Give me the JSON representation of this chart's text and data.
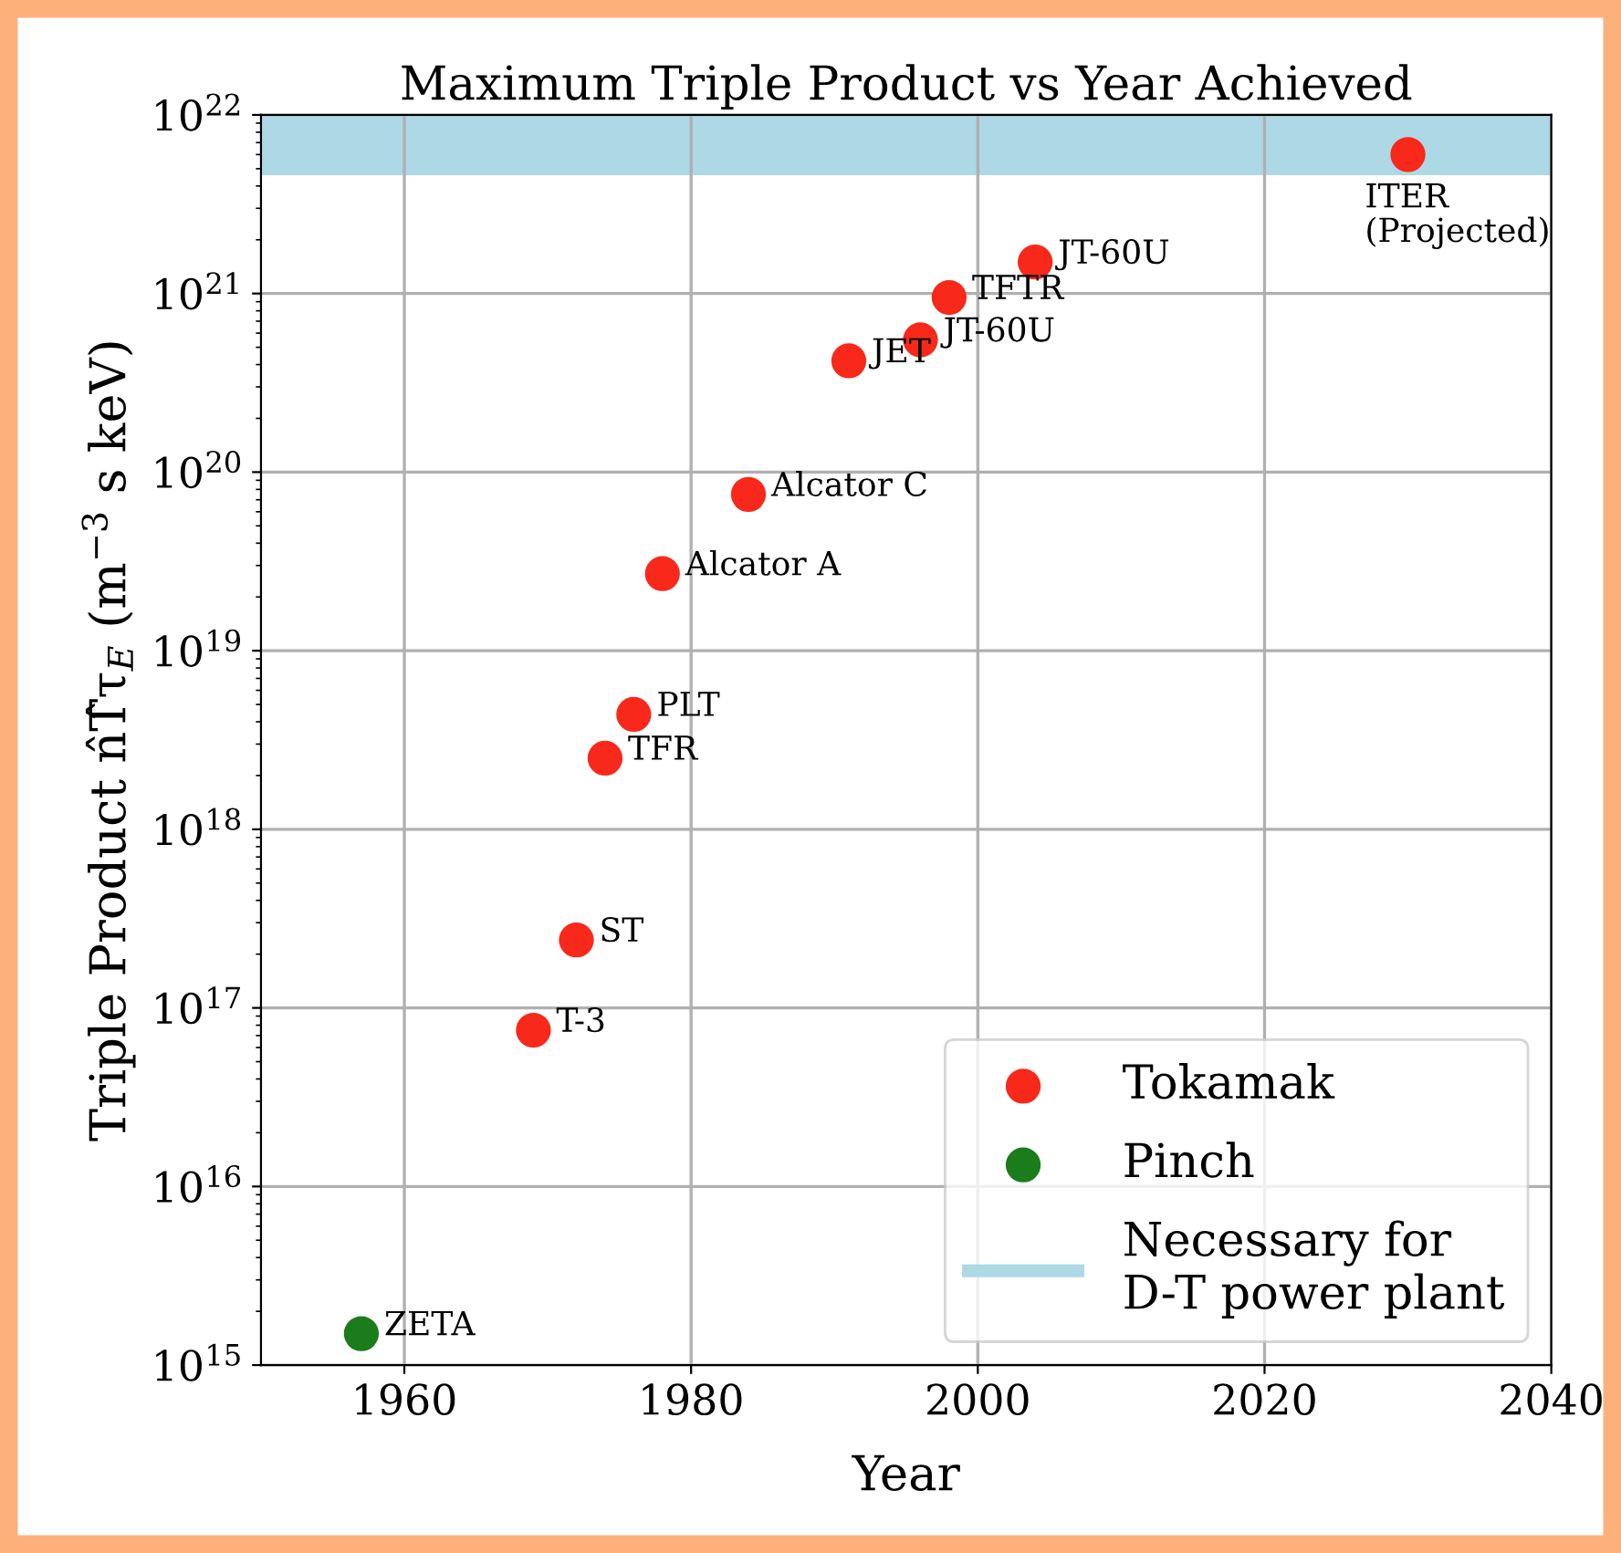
{
  "chart_data": {
    "type": "scatter",
    "title": "Maximum Triple Product vs Year Achieved",
    "xlabel": "Year",
    "ylabel": "Triple Product n̂T̂τ$_{E}$ (m$^{−3}$ s keV)",
    "log": "y",
    "xlim": [
      1950,
      2040
    ],
    "xticks": [
      1960,
      1980,
      2000,
      2020,
      2040
    ],
    "ylim": [
      1000000000000000.0,
      1e+22
    ],
    "yticks": [
      {
        "value": 1000000000000000.0,
        "label": "10$^{15}$"
      },
      {
        "value": 1e+16,
        "label": "10$^{16}$"
      },
      {
        "value": 1e+17,
        "label": "10$^{17}$"
      },
      {
        "value": 1e+18,
        "label": "10$^{18}$"
      },
      {
        "value": 1e+19,
        "label": "10$^{19}$"
      },
      {
        "value": 1e+20,
        "label": "10$^{20}$"
      },
      {
        "value": 1e+21,
        "label": "10$^{21}$"
      },
      {
        "value": 1e+22,
        "label": "10$^{22}$"
      }
    ],
    "grid": true,
    "legend": "bottom right",
    "marker": "circle",
    "series": [
      {
        "name": "Tokamak",
        "color": "#f8281a",
        "x": [
          1969,
          1972,
          1974,
          1976,
          1978,
          1984,
          1991,
          1996,
          1998,
          2004,
          2030
        ],
        "values": [
          7.5e+16,
          2.4e+17,
          2.5e+18,
          4.4e+18,
          2.7e+19,
          7.5e+19,
          4.2e+20,
          5.5e+20,
          9.5e+20,
          1.5e+21,
          6e+21
        ]
      },
      {
        "name": "Pinch",
        "color": "#1a7c1a",
        "x": [
          1957
        ],
        "values": [
          1500000000000000.0
        ]
      }
    ],
    "bands": [
      {
        "axis": "y",
        "from": 4.6e+21,
        "to": 1e+22,
        "label": "Necessary for\nD-T power plant",
        "color": "#add8e6"
      }
    ],
    "annotations": [
      {
        "text": "ZETA",
        "x": 1957,
        "y": 1500000000000000.0
      },
      {
        "text": "T-3",
        "x": 1969,
        "y": 7.5e+16
      },
      {
        "text": "ST",
        "x": 1972,
        "y": 2.4e+17
      },
      {
        "text": "TFR",
        "x": 1974,
        "y": 2.5e+18
      },
      {
        "text": "PLT",
        "x": 1976,
        "y": 4.4e+18
      },
      {
        "text": "Alcator A",
        "x": 1978,
        "y": 2.7e+19
      },
      {
        "text": "Alcator C",
        "x": 1984,
        "y": 7.5e+19
      },
      {
        "text": "JET",
        "x": 1991,
        "y": 4.2e+20
      },
      {
        "text": "JT-60U",
        "x": 1996,
        "y": 5.5e+20
      },
      {
        "text": "TFTR",
        "x": 1998,
        "y": 9.5e+20
      },
      {
        "text": "JT-60U",
        "x": 2004,
        "y": 1.5e+21
      },
      {
        "text": "ITER\n(Projected)",
        "x": 2030,
        "y": 6e+21
      }
    ]
  }
}
